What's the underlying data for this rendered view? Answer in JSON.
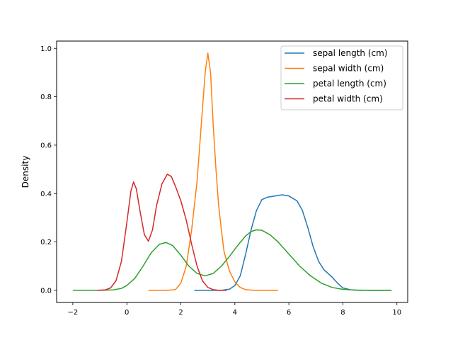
{
  "chart_data": {
    "type": "line",
    "xlabel": "",
    "ylabel": "Density",
    "xlim": [
      -2.6,
      10.4
    ],
    "ylim": [
      -0.05,
      1.03
    ],
    "xticks": [
      -2,
      0,
      2,
      4,
      6,
      8,
      10
    ],
    "xtick_labels": [
      "−2",
      "0",
      "2",
      "4",
      "6",
      "8",
      "10"
    ],
    "yticks": [
      0.0,
      0.2,
      0.4,
      0.6,
      0.8,
      1.0
    ],
    "ytick_labels": [
      "0.0",
      "0.2",
      "0.4",
      "0.6",
      "0.8",
      "1.0"
    ],
    "grid": false,
    "legend_position": "top-right",
    "series": [
      {
        "name": "sepal length (cm)",
        "color": "#1f77b4",
        "points": [
          [
            2.5,
            0.0
          ],
          [
            3.0,
            0.0
          ],
          [
            3.5,
            0.0
          ],
          [
            3.8,
            0.005
          ],
          [
            4.0,
            0.02
          ],
          [
            4.2,
            0.06
          ],
          [
            4.4,
            0.15
          ],
          [
            4.6,
            0.25
          ],
          [
            4.8,
            0.33
          ],
          [
            5.0,
            0.375
          ],
          [
            5.2,
            0.385
          ],
          [
            5.5,
            0.39
          ],
          [
            5.75,
            0.395
          ],
          [
            6.0,
            0.39
          ],
          [
            6.3,
            0.37
          ],
          [
            6.5,
            0.33
          ],
          [
            6.7,
            0.26
          ],
          [
            6.9,
            0.18
          ],
          [
            7.1,
            0.12
          ],
          [
            7.3,
            0.085
          ],
          [
            7.6,
            0.055
          ],
          [
            7.8,
            0.03
          ],
          [
            8.0,
            0.01
          ],
          [
            8.3,
            0.002
          ],
          [
            8.6,
            0.0
          ],
          [
            9.5,
            0.0
          ],
          [
            9.8,
            0.0
          ]
        ]
      },
      {
        "name": "sepal width (cm)",
        "color": "#ff7f0e",
        "points": [
          [
            0.8,
            0.0
          ],
          [
            1.5,
            0.0
          ],
          [
            1.8,
            0.003
          ],
          [
            2.0,
            0.03
          ],
          [
            2.2,
            0.1
          ],
          [
            2.4,
            0.25
          ],
          [
            2.6,
            0.45
          ],
          [
            2.8,
            0.75
          ],
          [
            2.9,
            0.9
          ],
          [
            3.0,
            0.98
          ],
          [
            3.1,
            0.9
          ],
          [
            3.2,
            0.68
          ],
          [
            3.3,
            0.5
          ],
          [
            3.4,
            0.35
          ],
          [
            3.5,
            0.25
          ],
          [
            3.6,
            0.16
          ],
          [
            3.8,
            0.08
          ],
          [
            4.0,
            0.035
          ],
          [
            4.2,
            0.012
          ],
          [
            4.4,
            0.003
          ],
          [
            4.7,
            0.0
          ],
          [
            5.6,
            0.0
          ]
        ]
      },
      {
        "name": "petal length (cm)",
        "color": "#2ca02c",
        "points": [
          [
            -2.0,
            0.0
          ],
          [
            -1.0,
            0.0
          ],
          [
            -0.5,
            0.002
          ],
          [
            -0.2,
            0.008
          ],
          [
            0.0,
            0.02
          ],
          [
            0.3,
            0.05
          ],
          [
            0.6,
            0.1
          ],
          [
            0.9,
            0.155
          ],
          [
            1.2,
            0.19
          ],
          [
            1.45,
            0.198
          ],
          [
            1.7,
            0.185
          ],
          [
            2.0,
            0.145
          ],
          [
            2.3,
            0.1
          ],
          [
            2.6,
            0.07
          ],
          [
            2.9,
            0.06
          ],
          [
            3.2,
            0.07
          ],
          [
            3.5,
            0.1
          ],
          [
            3.8,
            0.14
          ],
          [
            4.1,
            0.185
          ],
          [
            4.4,
            0.225
          ],
          [
            4.6,
            0.243
          ],
          [
            4.8,
            0.25
          ],
          [
            5.0,
            0.248
          ],
          [
            5.3,
            0.23
          ],
          [
            5.6,
            0.2
          ],
          [
            6.0,
            0.15
          ],
          [
            6.4,
            0.1
          ],
          [
            6.8,
            0.06
          ],
          [
            7.2,
            0.03
          ],
          [
            7.6,
            0.012
          ],
          [
            8.0,
            0.004
          ],
          [
            8.5,
            0.001
          ],
          [
            9.0,
            0.0
          ],
          [
            9.8,
            0.0
          ]
        ]
      },
      {
        "name": "petal width (cm)",
        "color": "#d62728",
        "points": [
          [
            -1.1,
            0.0
          ],
          [
            -0.8,
            0.002
          ],
          [
            -0.6,
            0.01
          ],
          [
            -0.4,
            0.04
          ],
          [
            -0.2,
            0.12
          ],
          [
            0.0,
            0.28
          ],
          [
            0.15,
            0.41
          ],
          [
            0.25,
            0.448
          ],
          [
            0.35,
            0.42
          ],
          [
            0.5,
            0.32
          ],
          [
            0.65,
            0.23
          ],
          [
            0.8,
            0.203
          ],
          [
            0.95,
            0.25
          ],
          [
            1.1,
            0.35
          ],
          [
            1.3,
            0.44
          ],
          [
            1.5,
            0.48
          ],
          [
            1.65,
            0.47
          ],
          [
            1.8,
            0.43
          ],
          [
            2.0,
            0.37
          ],
          [
            2.2,
            0.29
          ],
          [
            2.4,
            0.19
          ],
          [
            2.6,
            0.1
          ],
          [
            2.8,
            0.04
          ],
          [
            3.0,
            0.012
          ],
          [
            3.2,
            0.003
          ],
          [
            3.4,
            0.0
          ],
          [
            3.7,
            0.0
          ]
        ]
      }
    ]
  }
}
